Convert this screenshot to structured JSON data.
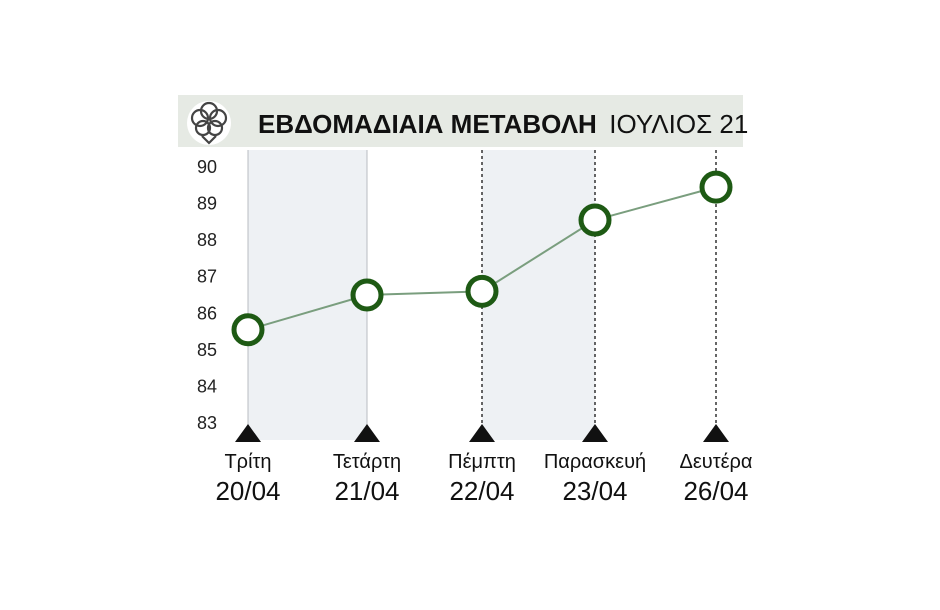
{
  "header": {
    "title_main": "ΕΒΔΟΜΑΔΙΑΙΑ ΜΕΤΑΒΟΛΗ",
    "title_sub": "ΙΟΥΛΙΟΣ 21",
    "icon": "cotton-icon"
  },
  "chart_data": {
    "type": "line",
    "title": "ΕΒΔΟΜΑΔΙΑΙΑ ΜΕΤΑΒΟΛΗ ΙΟΥΛΙΟΣ 21",
    "categories": [
      {
        "day": "Τρίτη",
        "date": "20/04"
      },
      {
        "day": "Τετάρτη",
        "date": "21/04"
      },
      {
        "day": "Πέμπτη",
        "date": "22/04"
      },
      {
        "day": "Παρασκευή",
        "date": "23/04"
      },
      {
        "day": "Δευτέρα",
        "date": "26/04"
      }
    ],
    "values": [
      85.55,
      86.5,
      86.6,
      88.55,
      89.45
    ],
    "ylim": [
      83,
      90
    ],
    "yticks": [
      "83",
      "84",
      "85",
      "86",
      "87",
      "88",
      "89",
      "90"
    ],
    "grid": false,
    "colors": {
      "line": "#7a9e7e",
      "marker": "#1e5a14",
      "shade": "#eef1f4",
      "header_bg": "#e6eae4"
    }
  }
}
